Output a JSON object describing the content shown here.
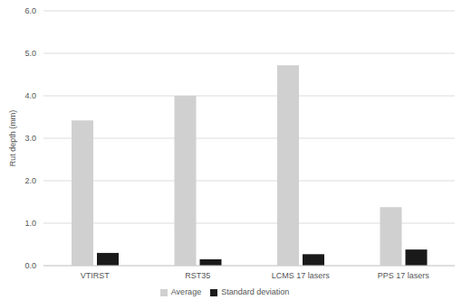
{
  "chart_data": {
    "type": "bar",
    "y_label": "Rut depth (mm)",
    "categories": [
      "VTIRST",
      "RST35",
      "LCMS 17 lasers",
      "PPS 17 lasers"
    ],
    "series": [
      {
        "name": "Average",
        "color": "#d0d0d0",
        "values": [
          3.42,
          4.0,
          4.72,
          1.38
        ]
      },
      {
        "name": "Standard deviation",
        "color": "#1a1a1a",
        "values": [
          0.3,
          0.15,
          0.27,
          0.38
        ]
      }
    ],
    "ylim": [
      0,
      6
    ],
    "yticks": [
      {
        "value": 0,
        "label": "0.0"
      },
      {
        "value": 1,
        "label": "1.0"
      },
      {
        "value": 2,
        "label": "2.0"
      },
      {
        "value": 3,
        "label": "3.0"
      },
      {
        "value": 4,
        "label": "4.0"
      },
      {
        "value": 5,
        "label": "5.0"
      },
      {
        "value": 6,
        "label": "6.0"
      }
    ],
    "grid": true,
    "legend": "bottom"
  }
}
